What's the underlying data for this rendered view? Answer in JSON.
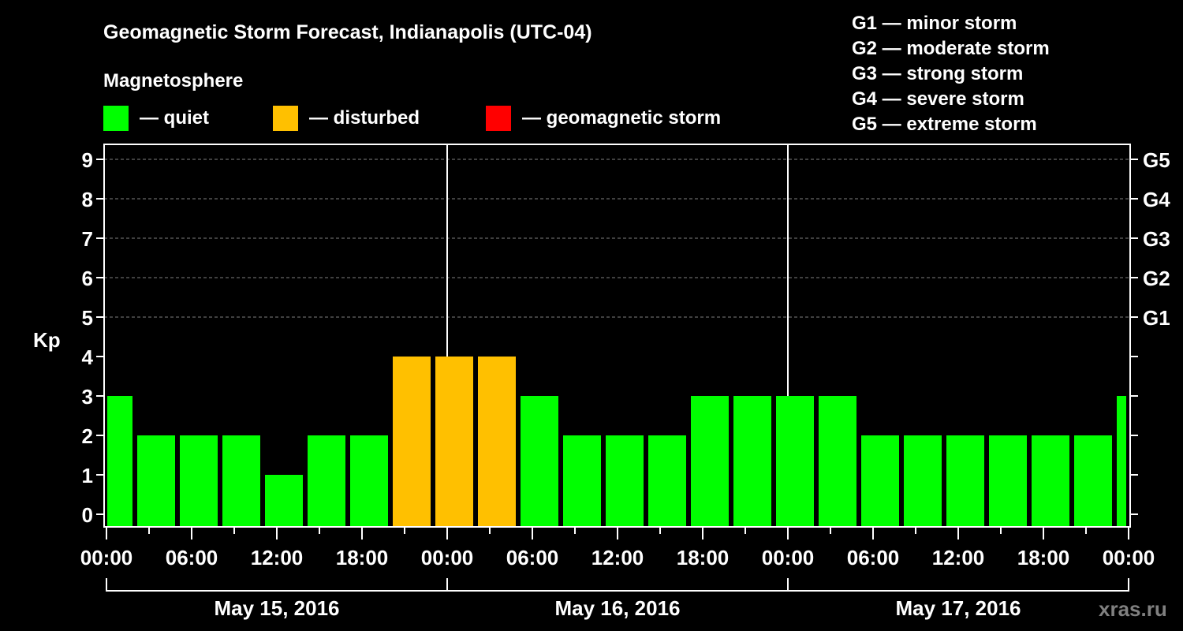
{
  "chart_data": {
    "type": "bar",
    "title": "Geomagnetic Storm Forecast, Indianapolis (UTC-04)",
    "ylabel": "Kp",
    "ylim": [
      0,
      9
    ],
    "yticks": [
      "0",
      "1",
      "2",
      "3",
      "4",
      "5",
      "6",
      "7",
      "8",
      "9"
    ],
    "right_ticks": [
      {
        "kp": 5,
        "label": "G1"
      },
      {
        "kp": 6,
        "label": "G2"
      },
      {
        "kp": 7,
        "label": "G3"
      },
      {
        "kp": 8,
        "label": "G4"
      },
      {
        "kp": 9,
        "label": "G5"
      }
    ],
    "grid_from_kp": 5,
    "xrange_hours": [
      0,
      72
    ],
    "xtick_labels": [
      "00:00",
      "06:00",
      "12:00",
      "18:00",
      "00:00",
      "06:00",
      "12:00",
      "18:00",
      "00:00",
      "06:00",
      "12:00",
      "18:00",
      "00:00"
    ],
    "days": [
      "May 15, 2016",
      "May 16, 2016",
      "May 17, 2016"
    ],
    "bin_hours": 3,
    "bin_start_hours": [
      -1,
      2,
      5,
      8,
      11,
      14,
      17,
      20,
      23,
      26,
      29,
      32,
      35,
      38,
      41,
      44,
      47,
      50,
      53,
      56,
      59,
      62,
      65,
      68,
      71
    ],
    "values": [
      3,
      2,
      2,
      2,
      1,
      2,
      2,
      4,
      4,
      4,
      3,
      2,
      2,
      2,
      3,
      3,
      3,
      3,
      2,
      2,
      2,
      2,
      2,
      2,
      3
    ],
    "legend_title": "Magnetosphere",
    "legend": [
      {
        "label": "— quiet",
        "color": "#00ff00",
        "max_kp": 3
      },
      {
        "label": "— disturbed",
        "color": "#ffc000",
        "max_kp": 4
      },
      {
        "label": "— geomagnetic storm",
        "color": "#ff0000",
        "max_kp": 9
      }
    ],
    "scale_legend": [
      "G1 — minor storm",
      "G2 — moderate storm",
      "G3 — strong storm",
      "G4 — severe storm",
      "G5 — extreme storm"
    ],
    "watermark": "xras.ru"
  }
}
